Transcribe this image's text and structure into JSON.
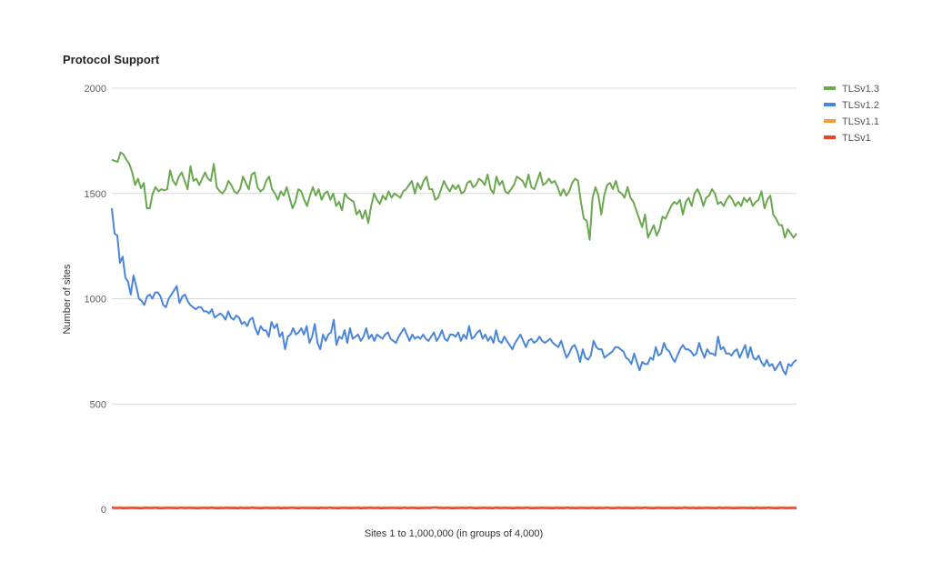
{
  "chart_data": {
    "type": "line",
    "title": "Protocol Support",
    "xlabel": "Sites 1 to 1,000,000 (in groups of 4,000)",
    "ylabel": "Number of sites",
    "ylim": [
      0,
      2000
    ],
    "yticks": [
      "0",
      "500",
      "1000",
      "1500",
      "2000"
    ],
    "grid": true,
    "legend_position": "right",
    "series": [
      {
        "name": "TLSv1.3",
        "color": "#6aa84f",
        "values": [
          1660,
          1655,
          1650,
          1695,
          1685,
          1660,
          1640,
          1600,
          1540,
          1570,
          1525,
          1550,
          1430,
          1430,
          1500,
          1530,
          1510,
          1520,
          1515,
          1520,
          1610,
          1560,
          1540,
          1580,
          1600,
          1560,
          1520,
          1630,
          1560,
          1570,
          1540,
          1570,
          1600,
          1570,
          1560,
          1640,
          1530,
          1510,
          1500,
          1520,
          1560,
          1540,
          1510,
          1500,
          1520,
          1580,
          1550,
          1520,
          1590,
          1600,
          1530,
          1510,
          1520,
          1560,
          1580,
          1520,
          1500,
          1470,
          1510,
          1490,
          1530,
          1480,
          1430,
          1460,
          1520,
          1510,
          1470,
          1440,
          1490,
          1530,
          1490,
          1520,
          1470,
          1500,
          1510,
          1470,
          1500,
          1440,
          1460,
          1420,
          1500,
          1480,
          1470,
          1460,
          1400,
          1420,
          1380,
          1420,
          1360,
          1440,
          1500,
          1470,
          1450,
          1490,
          1470,
          1510,
          1480,
          1500,
          1490,
          1480,
          1510,
          1520,
          1540,
          1560,
          1500,
          1550,
          1520,
          1560,
          1580,
          1520,
          1520,
          1470,
          1480,
          1520,
          1560,
          1530,
          1510,
          1540,
          1520,
          1540,
          1500,
          1510,
          1550,
          1560,
          1530,
          1540,
          1570,
          1560,
          1540,
          1590,
          1520,
          1500,
          1580,
          1540,
          1560,
          1510,
          1500,
          1520,
          1540,
          1580,
          1570,
          1560,
          1530,
          1590,
          1530,
          1520,
          1560,
          1600,
          1540,
          1550,
          1570,
          1550,
          1560,
          1530,
          1490,
          1520,
          1490,
          1510,
          1550,
          1570,
          1560,
          1460,
          1380,
          1370,
          1280,
          1480,
          1530,
          1490,
          1400,
          1490,
          1540,
          1550,
          1520,
          1560,
          1510,
          1500,
          1480,
          1530,
          1480,
          1460,
          1420,
          1380,
          1340,
          1400,
          1290,
          1320,
          1350,
          1300,
          1330,
          1390,
          1380,
          1410,
          1440,
          1460,
          1450,
          1470,
          1400,
          1460,
          1480,
          1440,
          1500,
          1520,
          1490,
          1440,
          1480,
          1490,
          1520,
          1500,
          1450,
          1460,
          1440,
          1470,
          1490,
          1470,
          1440,
          1460,
          1440,
          1480,
          1460,
          1480,
          1440,
          1460,
          1470,
          1510,
          1430,
          1470,
          1490,
          1400,
          1380,
          1350,
          1350,
          1290,
          1330,
          1310,
          1290,
          1310
        ]
      },
      {
        "name": "TLSv1.2",
        "color": "#4a86d8",
        "values": [
          1430,
          1310,
          1300,
          1170,
          1200,
          1100,
          1080,
          1020,
          1110,
          1060,
          1000,
          990,
          970,
          1010,
          1020,
          1000,
          1030,
          1030,
          1010,
          970,
          960,
          1000,
          1020,
          1040,
          1060,
          980,
          1010,
          1020,
          990,
          970,
          960,
          950,
          960,
          960,
          940,
          940,
          930,
          950,
          910,
          920,
          930,
          920,
          900,
          940,
          910,
          900,
          920,
          910,
          880,
          890,
          870,
          900,
          910,
          860,
          830,
          870,
          850,
          850,
          820,
          890,
          860,
          880,
          820,
          840,
          760,
          820,
          830,
          860,
          830,
          840,
          860,
          830,
          870,
          790,
          820,
          880,
          790,
          760,
          830,
          800,
          830,
          840,
          900,
          780,
          820,
          810,
          850,
          790,
          860,
          810,
          820,
          830,
          800,
          820,
          860,
          810,
          830,
          800,
          830,
          820,
          810,
          830,
          840,
          810,
          800,
          790,
          820,
          840,
          860,
          830,
          800,
          830,
          810,
          820,
          810,
          830,
          810,
          800,
          820,
          840,
          800,
          820,
          850,
          810,
          800,
          830,
          830,
          820,
          840,
          800,
          830,
          810,
          870,
          810,
          820,
          840,
          850,
          810,
          830,
          800,
          820,
          790,
          850,
          800,
          790,
          820,
          800,
          780,
          760,
          790,
          810,
          830,
          800,
          770,
          800,
          810,
          790,
          800,
          820,
          800,
          790,
          800,
          810,
          790,
          780,
          770,
          800,
          760,
          720,
          740,
          770,
          780,
          750,
          700,
          760,
          720,
          710,
          730,
          800,
          770,
          760,
          760,
          720,
          730,
          740,
          750,
          770,
          770,
          760,
          750,
          720,
          710,
          690,
          740,
          700,
          660,
          700,
          690,
          690,
          720,
          710,
          770,
          730,
          740,
          790,
          760,
          750,
          720,
          700,
          730,
          760,
          780,
          760,
          760,
          750,
          730,
          740,
          790,
          750,
          720,
          760,
          740,
          740,
          730,
          820,
          760,
          770,
          740,
          740,
          730,
          750,
          760,
          720,
          750,
          780,
          720,
          770,
          720,
          710,
          730,
          700,
          680,
          710,
          680,
          690,
          660,
          680,
          700,
          660,
          640,
          690,
          680,
          700,
          710
        ]
      },
      {
        "name": "TLSv1.1",
        "color": "#f39c3c",
        "values": [
          10,
          9,
          9,
          10,
          10,
          9,
          10,
          9,
          10,
          9,
          9,
          10,
          10,
          9,
          10,
          9,
          10,
          9,
          10,
          10,
          9,
          10,
          9,
          10,
          9,
          10,
          10,
          9,
          10,
          9,
          10,
          10,
          9,
          10,
          9,
          10,
          9,
          10,
          10,
          9,
          10,
          9,
          10,
          9,
          10,
          10,
          9,
          10,
          9,
          10,
          9,
          10,
          10,
          9,
          10,
          9,
          10,
          9,
          10,
          10,
          9,
          10,
          9,
          10,
          9,
          10,
          10,
          9,
          10,
          9,
          10,
          9,
          10,
          10,
          9,
          10,
          9,
          10,
          9,
          10,
          10,
          9,
          10,
          9,
          10,
          9,
          10,
          10,
          9,
          10,
          9,
          10,
          9,
          10,
          10,
          9,
          10,
          9,
          10,
          9,
          10,
          10,
          9,
          10,
          9,
          10,
          9,
          10,
          10,
          9,
          10,
          9,
          10,
          9,
          10,
          10,
          9,
          10,
          9,
          10,
          9,
          10,
          10,
          9,
          10,
          9,
          10,
          9,
          10,
          10,
          9,
          10,
          9,
          10,
          9,
          10,
          10,
          9,
          10,
          9,
          10,
          9,
          10,
          10,
          9,
          10,
          9,
          10,
          9,
          10,
          10,
          9,
          10,
          9,
          10,
          9,
          10,
          10,
          9,
          10,
          9,
          10,
          9,
          10,
          10,
          9,
          10,
          9,
          10,
          9,
          10,
          10,
          9,
          10,
          9,
          10,
          9,
          10,
          10,
          9,
          10,
          9,
          10,
          9,
          10,
          10,
          9,
          10,
          9,
          10,
          9,
          10,
          10,
          9,
          10,
          9,
          10,
          9,
          10,
          10,
          9,
          10,
          9,
          10,
          9,
          10,
          10,
          9,
          10,
          9,
          10,
          9,
          10,
          10,
          9,
          10,
          9,
          10,
          9,
          10,
          10,
          9,
          10,
          9,
          10,
          9,
          10,
          10,
          9,
          10,
          9,
          10,
          9,
          10,
          10,
          9,
          10,
          9,
          10,
          9,
          10
        ]
      },
      {
        "name": "TLSv1",
        "color": "#e8442e",
        "values": [
          8,
          6,
          5,
          7,
          4,
          6,
          5,
          7,
          5,
          6,
          4,
          5,
          7,
          6,
          5,
          8,
          6,
          4,
          5,
          6,
          7,
          5,
          6,
          4,
          8,
          6,
          5,
          7,
          6,
          5,
          4,
          6,
          7,
          5,
          6,
          8,
          5,
          4,
          6,
          5,
          7,
          6,
          5,
          6,
          4,
          7,
          5,
          6,
          5,
          8,
          6,
          5,
          4,
          6,
          7,
          5,
          6,
          5,
          7,
          4,
          6,
          5,
          6,
          8,
          5,
          4,
          6,
          7,
          5,
          6,
          5,
          6,
          4,
          7,
          6,
          5,
          8,
          6,
          5,
          4,
          6,
          7,
          5,
          6,
          5,
          6,
          7,
          4,
          6,
          5,
          8,
          6,
          5,
          7,
          4,
          6,
          5,
          6,
          7,
          5,
          6,
          4,
          8,
          5,
          6,
          7,
          5,
          4,
          6,
          5,
          7,
          6,
          8,
          10,
          7,
          6,
          5,
          7,
          6,
          4,
          6,
          5,
          7,
          6,
          5,
          8,
          6,
          4,
          5,
          6,
          7,
          5,
          6,
          4,
          8,
          6,
          5,
          7,
          6,
          5,
          4,
          6,
          7,
          5,
          6,
          8,
          5,
          4,
          6,
          5,
          7,
          6,
          5,
          6,
          4,
          7,
          5,
          6,
          5,
          8,
          6,
          5,
          4,
          6,
          7,
          5,
          6,
          5,
          7,
          4,
          6,
          5,
          6,
          8,
          5,
          4,
          6,
          7,
          5,
          6,
          5,
          6,
          4,
          7,
          6,
          5,
          8,
          6,
          5,
          4,
          6,
          7,
          5,
          6,
          5,
          6,
          7,
          4,
          6,
          5,
          8,
          6,
          5,
          7,
          4,
          6,
          5,
          6,
          7,
          5,
          6,
          4,
          8,
          5,
          6,
          7,
          5,
          4,
          6,
          5,
          7,
          6,
          5,
          6,
          4,
          7,
          5,
          6,
          5,
          8,
          6,
          5,
          4,
          6,
          7,
          5,
          6,
          5,
          7,
          4
        ]
      }
    ]
  }
}
